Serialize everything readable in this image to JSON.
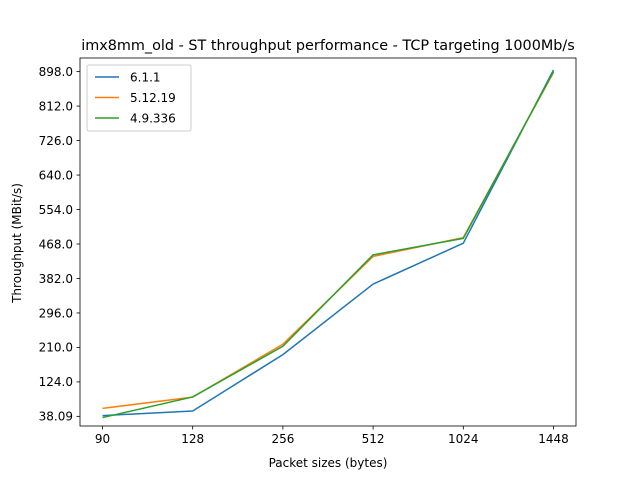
{
  "chart_data": {
    "type": "line",
    "title": "imx8mm_old - ST throughput performance - TCP targeting 1000Mb/s",
    "xlabel": "Packet sizes (bytes)",
    "ylabel": "Throughput (MBit/s)",
    "categories": [
      "90",
      "128",
      "256",
      "512",
      "1024",
      "1448"
    ],
    "yticks": [
      "38.09",
      "124.0",
      "210.0",
      "296.0",
      "382.0",
      "468.0",
      "554.0",
      "640.0",
      "726.0",
      "812.0",
      "898.0"
    ],
    "ylim": [
      14,
      932
    ],
    "legend_position": "upper-left",
    "grid": false,
    "series": [
      {
        "name": "6.1.1",
        "color": "#1f77b4",
        "values": [
          40.0,
          51.5,
          192.0,
          368.0,
          470.0,
          902.0
        ]
      },
      {
        "name": "5.12.19",
        "color": "#ff7f0e",
        "values": [
          58.0,
          86.0,
          218.0,
          437.0,
          484.0,
          896.0
        ]
      },
      {
        "name": "4.9.336",
        "color": "#2ca02c",
        "values": [
          35.0,
          86.5,
          213.0,
          441.0,
          482.0,
          898.0
        ]
      }
    ]
  }
}
